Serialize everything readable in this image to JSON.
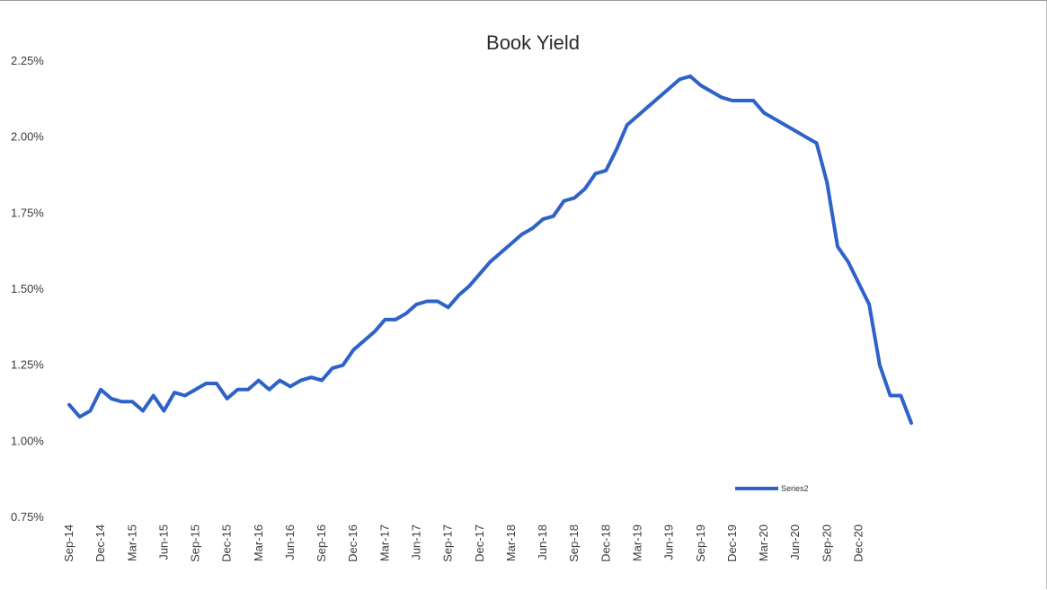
{
  "chart_data": {
    "type": "line",
    "title": "Book Yield",
    "xlabel": "",
    "ylabel": "",
    "ylim": [
      0.75,
      2.25
    ],
    "yticks": [
      "0.75%",
      "1.00%",
      "1.25%",
      "1.50%",
      "1.75%",
      "2.00%",
      "2.25%"
    ],
    "ytick_values": [
      0.75,
      1.0,
      1.25,
      1.5,
      1.75,
      2.0,
      2.25
    ],
    "x_tick_labels": [
      "Sep-14",
      "Dec-14",
      "Mar-15",
      "Jun-15",
      "Sep-15",
      "Dec-15",
      "Mar-16",
      "Jun-16",
      "Sep-16",
      "Dec-16",
      "Mar-17",
      "Jun-17",
      "Sep-17",
      "Dec-17",
      "Mar-18",
      "Jun-18",
      "Sep-18",
      "Dec-18",
      "Mar-19",
      "Jun-19",
      "Sep-19",
      "Dec-19",
      "Mar-20",
      "Jun-20",
      "Sep-20",
      "Dec-20"
    ],
    "grid": false,
    "legend_position": "bottom-right",
    "line_color": "#2e62c8",
    "series": [
      {
        "name": "Series2",
        "values": [
          1.12,
          1.08,
          1.1,
          1.17,
          1.14,
          1.13,
          1.13,
          1.1,
          1.15,
          1.1,
          1.16,
          1.15,
          1.17,
          1.19,
          1.19,
          1.14,
          1.17,
          1.17,
          1.2,
          1.17,
          1.2,
          1.18,
          1.2,
          1.21,
          1.2,
          1.24,
          1.25,
          1.3,
          1.33,
          1.36,
          1.4,
          1.4,
          1.42,
          1.45,
          1.46,
          1.46,
          1.44,
          1.48,
          1.51,
          1.55,
          1.59,
          1.62,
          1.65,
          1.68,
          1.7,
          1.73,
          1.74,
          1.79,
          1.8,
          1.83,
          1.88,
          1.89,
          1.96,
          2.04,
          2.07,
          2.1,
          2.13,
          2.16,
          2.19,
          2.2,
          2.17,
          2.15,
          2.13,
          2.12,
          2.12,
          2.12,
          2.08,
          2.06,
          2.04,
          2.02,
          2.0,
          1.98,
          1.85,
          1.64,
          1.59,
          1.52,
          1.45,
          1.25,
          1.15,
          1.15,
          1.06
        ]
      }
    ]
  }
}
